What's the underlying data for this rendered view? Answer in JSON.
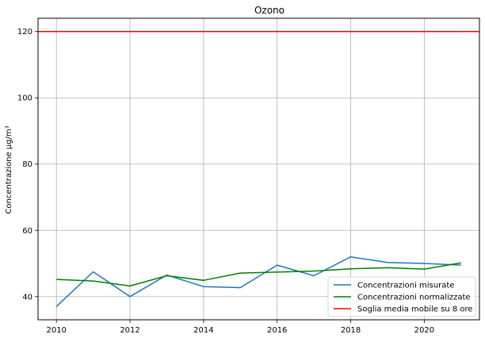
{
  "chart_data": {
    "type": "line",
    "title": "Ozono",
    "xlabel": "",
    "ylabel": "Concentrazione µg/m³",
    "xlim": [
      2009.5,
      2021.5
    ],
    "ylim": [
      33,
      124
    ],
    "x_ticks": [
      2010,
      2012,
      2014,
      2016,
      2018,
      2020
    ],
    "y_ticks": [
      40,
      60,
      80,
      100,
      120
    ],
    "grid": true,
    "legend_position": "bottom-right",
    "series": [
      {
        "name": "Concentrazioni misurate",
        "color": "#1f77b4",
        "x": [
          2010,
          2011,
          2012,
          2013,
          2014,
          2015,
          2016,
          2017,
          2018,
          2019,
          2020,
          2021
        ],
        "values": [
          37.0,
          47.5,
          40.0,
          46.5,
          43.0,
          42.7,
          49.5,
          46.3,
          52.0,
          50.3,
          50.0,
          49.5
        ]
      },
      {
        "name": "Concentrazioni normalizzate",
        "color": "#008000",
        "x": [
          2010,
          2011,
          2012,
          2013,
          2014,
          2015,
          2016,
          2017,
          2018,
          2019,
          2020,
          2021
        ],
        "values": [
          45.2,
          44.7,
          43.2,
          46.3,
          44.9,
          47.1,
          47.4,
          47.7,
          48.4,
          48.7,
          48.3,
          50.2
        ]
      },
      {
        "name": "Soglia media mobile su 8 ore",
        "color": "#ff0000",
        "type": "hline",
        "value": 120
      }
    ]
  }
}
